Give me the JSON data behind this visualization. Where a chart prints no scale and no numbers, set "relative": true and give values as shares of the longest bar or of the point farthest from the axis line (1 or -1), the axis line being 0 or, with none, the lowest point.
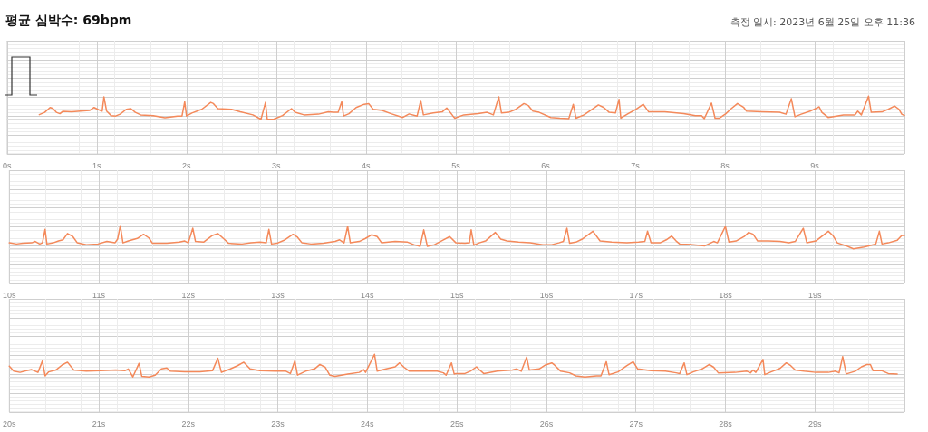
{
  "chart_data": [
    {
      "type": "line",
      "title": "평균 심박수: 69bpm",
      "subtitle": "측정 일시: 2023년 6월 25일 오후 11:36",
      "relative": true,
      "color": "#f4895a",
      "grid": true,
      "marker": "none",
      "line_style": "solid",
      "xlim": [
        0,
        10
      ],
      "xticks": [
        {
          "value": 0,
          "label": "0s"
        },
        {
          "value": 1,
          "label": "1s"
        },
        {
          "value": 2,
          "label": "2s"
        },
        {
          "value": 3,
          "label": "3s"
        },
        {
          "value": 4,
          "label": "4s"
        },
        {
          "value": 5,
          "label": "5s"
        },
        {
          "value": 6,
          "label": "6s"
        },
        {
          "value": 7,
          "label": "7s"
        },
        {
          "value": 8,
          "label": "8s"
        },
        {
          "value": 9,
          "label": "9s"
        },
        {
          "value": 10,
          "label": null
        }
      ],
      "x": [
        0.36,
        0.42,
        0.48,
        0.51,
        0.55,
        0.59,
        0.62,
        0.72,
        0.82,
        0.92,
        0.97,
        1.02,
        1.06,
        1.08,
        1.11,
        1.16,
        1.21,
        1.26,
        1.33,
        1.38,
        1.43,
        1.49,
        1.63,
        1.76,
        1.9,
        1.95,
        1.98,
        2.0,
        2.06,
        2.17,
        2.27,
        2.3,
        2.35,
        2.5,
        2.6,
        2.74,
        2.83,
        2.88,
        2.9,
        2.97,
        3.07,
        3.17,
        3.21,
        3.31,
        3.47,
        3.58,
        3.64,
        3.69,
        3.73,
        3.75,
        3.81,
        3.89,
        3.98,
        4.03,
        4.08,
        4.18,
        4.28,
        4.41,
        4.48,
        4.57,
        4.61,
        4.64,
        4.75,
        4.85,
        4.9,
        4.97,
        4.99,
        5.09,
        5.25,
        5.35,
        5.42,
        5.48,
        5.51,
        5.59,
        5.66,
        5.76,
        5.81,
        5.86,
        5.93,
        6.06,
        6.16,
        6.26,
        6.31,
        6.34,
        6.43,
        6.5,
        6.59,
        6.65,
        6.71,
        6.78,
        6.82,
        6.84,
        6.92,
        7.0,
        7.09,
        7.15,
        7.33,
        7.54,
        7.67,
        7.74,
        7.77,
        7.85,
        7.89,
        7.94,
        8.01,
        8.07,
        8.14,
        8.21,
        8.24,
        8.41,
        8.61,
        8.68,
        8.74,
        8.78,
        8.85,
        8.95,
        9.05,
        9.08,
        9.15,
        9.32,
        9.45,
        9.48,
        9.52,
        9.6,
        9.63,
        9.75,
        9.82,
        9.89,
        9.94,
        9.97,
        10.0
      ],
      "values": [
        0.2,
        0.3,
        0.51,
        0.47,
        0.3,
        0.24,
        0.34,
        0.32,
        0.35,
        0.38,
        0.51,
        0.41,
        0.35,
        0.97,
        0.35,
        0.16,
        0.14,
        0.22,
        0.43,
        0.46,
        0.3,
        0.19,
        0.16,
        0.07,
        0.14,
        0.14,
        0.76,
        0.14,
        0.27,
        0.43,
        0.73,
        0.68,
        0.46,
        0.43,
        0.32,
        0.19,
        0,
        0.73,
        0,
        0,
        0.16,
        0.46,
        0.3,
        0.19,
        0.22,
        0.32,
        0.3,
        0.3,
        0.76,
        0.14,
        0.24,
        0.51,
        0.65,
        0.68,
        0.43,
        0.38,
        0.24,
        0.08,
        0.23,
        0.14,
        0.81,
        0.19,
        0.27,
        0.32,
        0.49,
        0.14,
        0.05,
        0.19,
        0.24,
        0.3,
        0.19,
        0.97,
        0.27,
        0.3,
        0.41,
        0.68,
        0.59,
        0.35,
        0.3,
        0.08,
        0.05,
        0.03,
        0.65,
        0.05,
        0.19,
        0.38,
        0.62,
        0.51,
        0.3,
        0.27,
        0.86,
        0.05,
        0.24,
        0.41,
        0.65,
        0.32,
        0.32,
        0.24,
        0.16,
        0.16,
        0.03,
        0.7,
        0.05,
        0.05,
        0.24,
        0.46,
        0.68,
        0.51,
        0.35,
        0.32,
        0.3,
        0.22,
        0.89,
        0.11,
        0.22,
        0.35,
        0.54,
        0.3,
        0.08,
        0.19,
        0.19,
        0.35,
        0.19,
        1,
        0.3,
        0.32,
        0.43,
        0.57,
        0.43,
        0.22,
        0.16
      ]
    },
    {
      "type": "line",
      "relative": true,
      "color": "#f4895a",
      "grid": true,
      "marker": "none",
      "line_style": "solid",
      "xlim": [
        10,
        20
      ],
      "xticks": [
        {
          "value": 10,
          "label": "10s"
        },
        {
          "value": 11,
          "label": "11s"
        },
        {
          "value": 12,
          "label": "12s"
        },
        {
          "value": 13,
          "label": "13s"
        },
        {
          "value": 14,
          "label": "14s"
        },
        {
          "value": 15,
          "label": "15s"
        },
        {
          "value": 16,
          "label": "16s"
        },
        {
          "value": 17,
          "label": "17s"
        },
        {
          "value": 18,
          "label": "18s"
        },
        {
          "value": 19,
          "label": "19s"
        },
        {
          "value": 20,
          "label": null
        }
      ],
      "x": [
        10.0,
        10.08,
        10.15,
        10.25,
        10.29,
        10.34,
        10.37,
        10.4,
        10.42,
        10.49,
        10.55,
        10.6,
        10.65,
        10.71,
        10.76,
        10.86,
        10.99,
        11.09,
        11.18,
        11.21,
        11.24,
        11.27,
        11.33,
        11.43,
        11.5,
        11.56,
        11.6,
        11.76,
        11.9,
        11.96,
        12.0,
        12.05,
        12.08,
        12.17,
        12.27,
        12.33,
        12.4,
        12.45,
        12.6,
        12.7,
        12.8,
        12.87,
        12.9,
        12.93,
        12.99,
        13.07,
        13.17,
        13.22,
        13.27,
        13.37,
        13.51,
        13.64,
        13.69,
        13.74,
        13.78,
        13.81,
        13.91,
        13.98,
        14.05,
        14.11,
        14.16,
        14.31,
        14.45,
        14.52,
        14.59,
        14.63,
        14.67,
        14.75,
        14.85,
        14.92,
        14.99,
        15.09,
        15.14,
        15.16,
        15.19,
        15.25,
        15.32,
        15.43,
        15.49,
        15.56,
        15.69,
        15.82,
        15.96,
        16.06,
        16.14,
        16.19,
        16.23,
        16.26,
        16.33,
        16.4,
        16.52,
        16.6,
        16.73,
        16.9,
        17.03,
        17.1,
        17.13,
        17.17,
        17.27,
        17.34,
        17.4,
        17.45,
        17.49,
        17.64,
        17.77,
        17.87,
        17.91,
        18.0,
        18.04,
        18.12,
        18.21,
        18.26,
        18.31,
        18.36,
        18.48,
        18.61,
        18.71,
        18.78,
        18.87,
        18.91,
        19.01,
        19.15,
        19.2,
        19.25,
        19.35,
        19.43,
        19.55,
        19.63,
        19.68,
        19.72,
        19.75,
        19.82,
        19.92,
        19.97,
        20.0
      ],
      "values": [
        0.26,
        0.21,
        0.24,
        0.26,
        0.32,
        0.21,
        0.26,
        0.84,
        0.21,
        0.26,
        0.34,
        0.39,
        0.66,
        0.53,
        0.26,
        0.18,
        0.21,
        0.32,
        0.26,
        0.42,
        1,
        0.26,
        0.34,
        0.45,
        0.63,
        0.47,
        0.24,
        0.24,
        0.29,
        0.34,
        0.26,
        0.89,
        0.32,
        0.29,
        0.58,
        0.66,
        0.42,
        0.24,
        0.21,
        0.26,
        0.29,
        0.26,
        0.84,
        0.21,
        0.24,
        0.37,
        0.63,
        0.5,
        0.26,
        0.21,
        0.24,
        0.32,
        0.39,
        0.26,
        0.97,
        0.26,
        0.32,
        0.45,
        0.61,
        0.53,
        0.26,
        0.32,
        0.29,
        0.18,
        0.11,
        0.82,
        0.11,
        0.18,
        0.39,
        0.53,
        0.26,
        0.24,
        0.26,
        0.82,
        0.16,
        0.26,
        0.34,
        0.71,
        0.42,
        0.34,
        0.29,
        0.26,
        0.18,
        0.18,
        0.26,
        0.32,
        0.89,
        0.24,
        0.29,
        0.42,
        0.76,
        0.34,
        0.29,
        0.26,
        0.29,
        0.32,
        0.76,
        0.26,
        0.26,
        0.39,
        0.55,
        0.34,
        0.21,
        0.18,
        0.13,
        0.32,
        0.26,
        0.97,
        0.29,
        0.34,
        0.53,
        0.71,
        0.63,
        0.34,
        0.34,
        0.32,
        0.26,
        0.32,
        0.89,
        0.26,
        0.34,
        0.76,
        0.58,
        0.26,
        0.13,
        0,
        0.08,
        0.16,
        0.21,
        0.76,
        0.21,
        0.26,
        0.37,
        0.58,
        0.58
      ]
    },
    {
      "type": "line",
      "relative": true,
      "color": "#f4895a",
      "grid": true,
      "marker": "none",
      "line_style": "solid",
      "xlim": [
        20,
        30
      ],
      "xticks": [
        {
          "value": 20,
          "label": "20s"
        },
        {
          "value": 21,
          "label": "21s"
        },
        {
          "value": 22,
          "label": "22s"
        },
        {
          "value": 23,
          "label": "23s"
        },
        {
          "value": 24,
          "label": "24s"
        },
        {
          "value": 25,
          "label": "25s"
        },
        {
          "value": 26,
          "label": "26s"
        },
        {
          "value": 27,
          "label": "27s"
        },
        {
          "value": 28,
          "label": "28s"
        },
        {
          "value": 29,
          "label": "29s"
        },
        {
          "value": 30,
          "label": null
        }
      ],
      "x": [
        20.0,
        20.05,
        20.12,
        20.19,
        20.25,
        20.32,
        20.37,
        20.4,
        20.44,
        20.52,
        20.59,
        20.65,
        20.72,
        20.86,
        21.02,
        21.19,
        21.29,
        21.33,
        21.38,
        21.45,
        21.48,
        21.56,
        21.63,
        21.7,
        21.76,
        21.8,
        21.96,
        22.13,
        22.27,
        22.33,
        22.37,
        22.47,
        22.55,
        22.62,
        22.69,
        22.8,
        22.97,
        23.09,
        23.14,
        23.19,
        23.22,
        23.31,
        23.41,
        23.47,
        23.53,
        23.58,
        23.64,
        23.78,
        23.91,
        23.96,
        23.98,
        24.08,
        24.11,
        24.21,
        24.31,
        24.36,
        24.41,
        24.47,
        24.65,
        24.78,
        24.85,
        24.88,
        24.94,
        24.97,
        24.99,
        25.09,
        25.15,
        25.22,
        25.25,
        25.3,
        25.45,
        25.62,
        25.67,
        25.72,
        25.78,
        25.81,
        25.92,
        25.99,
        26.06,
        26.09,
        26.16,
        26.26,
        26.33,
        26.43,
        26.56,
        26.61,
        26.67,
        26.7,
        26.8,
        26.9,
        26.97,
        27.02,
        27.17,
        27.33,
        27.45,
        27.49,
        27.54,
        27.57,
        27.64,
        27.74,
        27.82,
        27.87,
        27.92,
        28.11,
        28.24,
        28.28,
        28.31,
        28.34,
        28.42,
        28.44,
        28.51,
        28.61,
        28.68,
        28.73,
        28.78,
        28.88,
        29.01,
        29.15,
        29.23,
        29.27,
        29.31,
        29.35,
        29.45,
        29.52,
        29.58,
        29.62,
        29.65,
        29.75,
        29.82,
        29.92
      ],
      "values": [
        0.49,
        0.27,
        0.22,
        0.29,
        0.34,
        0.22,
        0.71,
        0.07,
        0.24,
        0.32,
        0.54,
        0.66,
        0.32,
        0.27,
        0.29,
        0.32,
        0.29,
        0.37,
        0.02,
        0.61,
        0.05,
        0.02,
        0.1,
        0.37,
        0.41,
        0.27,
        0.24,
        0.24,
        0.29,
        0.83,
        0.22,
        0.37,
        0.51,
        0.66,
        0.37,
        0.29,
        0.27,
        0.27,
        0.17,
        0.71,
        0.1,
        0.27,
        0.37,
        0.56,
        0.44,
        0.1,
        0.05,
        0.15,
        0.22,
        0.34,
        0.22,
        1,
        0.27,
        0.37,
        0.46,
        0.63,
        0.44,
        0.27,
        0.27,
        0.27,
        0.2,
        0.1,
        0.63,
        0.15,
        0.17,
        0.17,
        0.27,
        0.46,
        0.34,
        0.17,
        0.27,
        0.32,
        0.37,
        0.27,
        0.88,
        0.32,
        0.37,
        0.54,
        0.63,
        0.54,
        0.27,
        0.2,
        0.07,
        0.02,
        0.07,
        0.07,
        0.68,
        0.12,
        0.24,
        0.51,
        0.68,
        0.37,
        0.29,
        0.27,
        0.2,
        0.17,
        0.63,
        0.12,
        0.24,
        0.37,
        0.56,
        0.44,
        0.2,
        0.22,
        0.27,
        0.2,
        0.32,
        0.22,
        0.78,
        0.12,
        0.24,
        0.39,
        0.63,
        0.51,
        0.32,
        0.27,
        0.22,
        0.22,
        0.27,
        0.2,
        0.9,
        0.15,
        0.27,
        0.46,
        0.56,
        0.56,
        0.29,
        0.29,
        0.17,
        0.15
      ]
    }
  ]
}
